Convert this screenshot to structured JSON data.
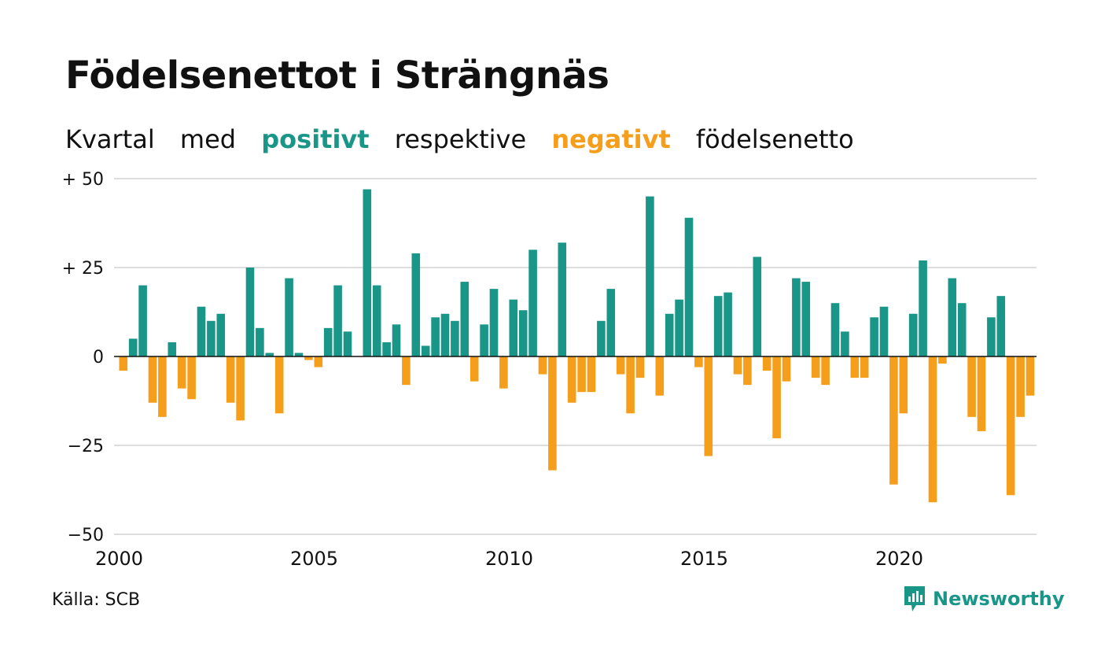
{
  "colors": {
    "positive": "#1a9688",
    "negative": "#f59e1b",
    "grid": "#dddddd",
    "text": "#111111"
  },
  "header": {
    "title": "Födelsenettot i Strängnäs",
    "subtitle_parts": [
      "Kvartal",
      "med",
      "positivt",
      "respektive",
      "negativt",
      "födelsenetto"
    ]
  },
  "footer": {
    "source": "Källa: SCB",
    "brand": "Newsworthy"
  },
  "chart_data": {
    "type": "bar",
    "title": "Födelsenettot i Strängnäs",
    "ylim": [
      -50,
      50
    ],
    "yticks": [
      {
        "value": 50,
        "label": "+ 50"
      },
      {
        "value": 25,
        "label": "+ 25"
      },
      {
        "value": 0,
        "label": "0"
      },
      {
        "value": -25,
        "label": "−25"
      },
      {
        "value": -50,
        "label": "−50"
      }
    ],
    "xticks": [
      "2000",
      "2005",
      "2010",
      "2015",
      "2020"
    ],
    "grid": true,
    "start_year": 2000,
    "values": [
      -4,
      5,
      20,
      -13,
      -17,
      4,
      -9,
      -12,
      14,
      10,
      12,
      -13,
      -18,
      25,
      8,
      1,
      -16,
      22,
      1,
      -1,
      -3,
      8,
      20,
      7,
      0,
      47,
      20,
      4,
      9,
      -8,
      29,
      3,
      11,
      12,
      10,
      21,
      -7,
      9,
      19,
      -9,
      16,
      13,
      30,
      -5,
      -32,
      32,
      -13,
      -10,
      -10,
      10,
      19,
      -5,
      -16,
      -6,
      45,
      -11,
      12,
      16,
      39,
      -3,
      -28,
      17,
      18,
      -5,
      -8,
      28,
      -4,
      -23,
      -7,
      22,
      21,
      -6,
      -8,
      15,
      7,
      -6,
      -6,
      11,
      14,
      -36,
      -16,
      12,
      27,
      -41,
      -2,
      22,
      15,
      -17,
      -21,
      11,
      17,
      -39,
      -17,
      -11
    ]
  }
}
